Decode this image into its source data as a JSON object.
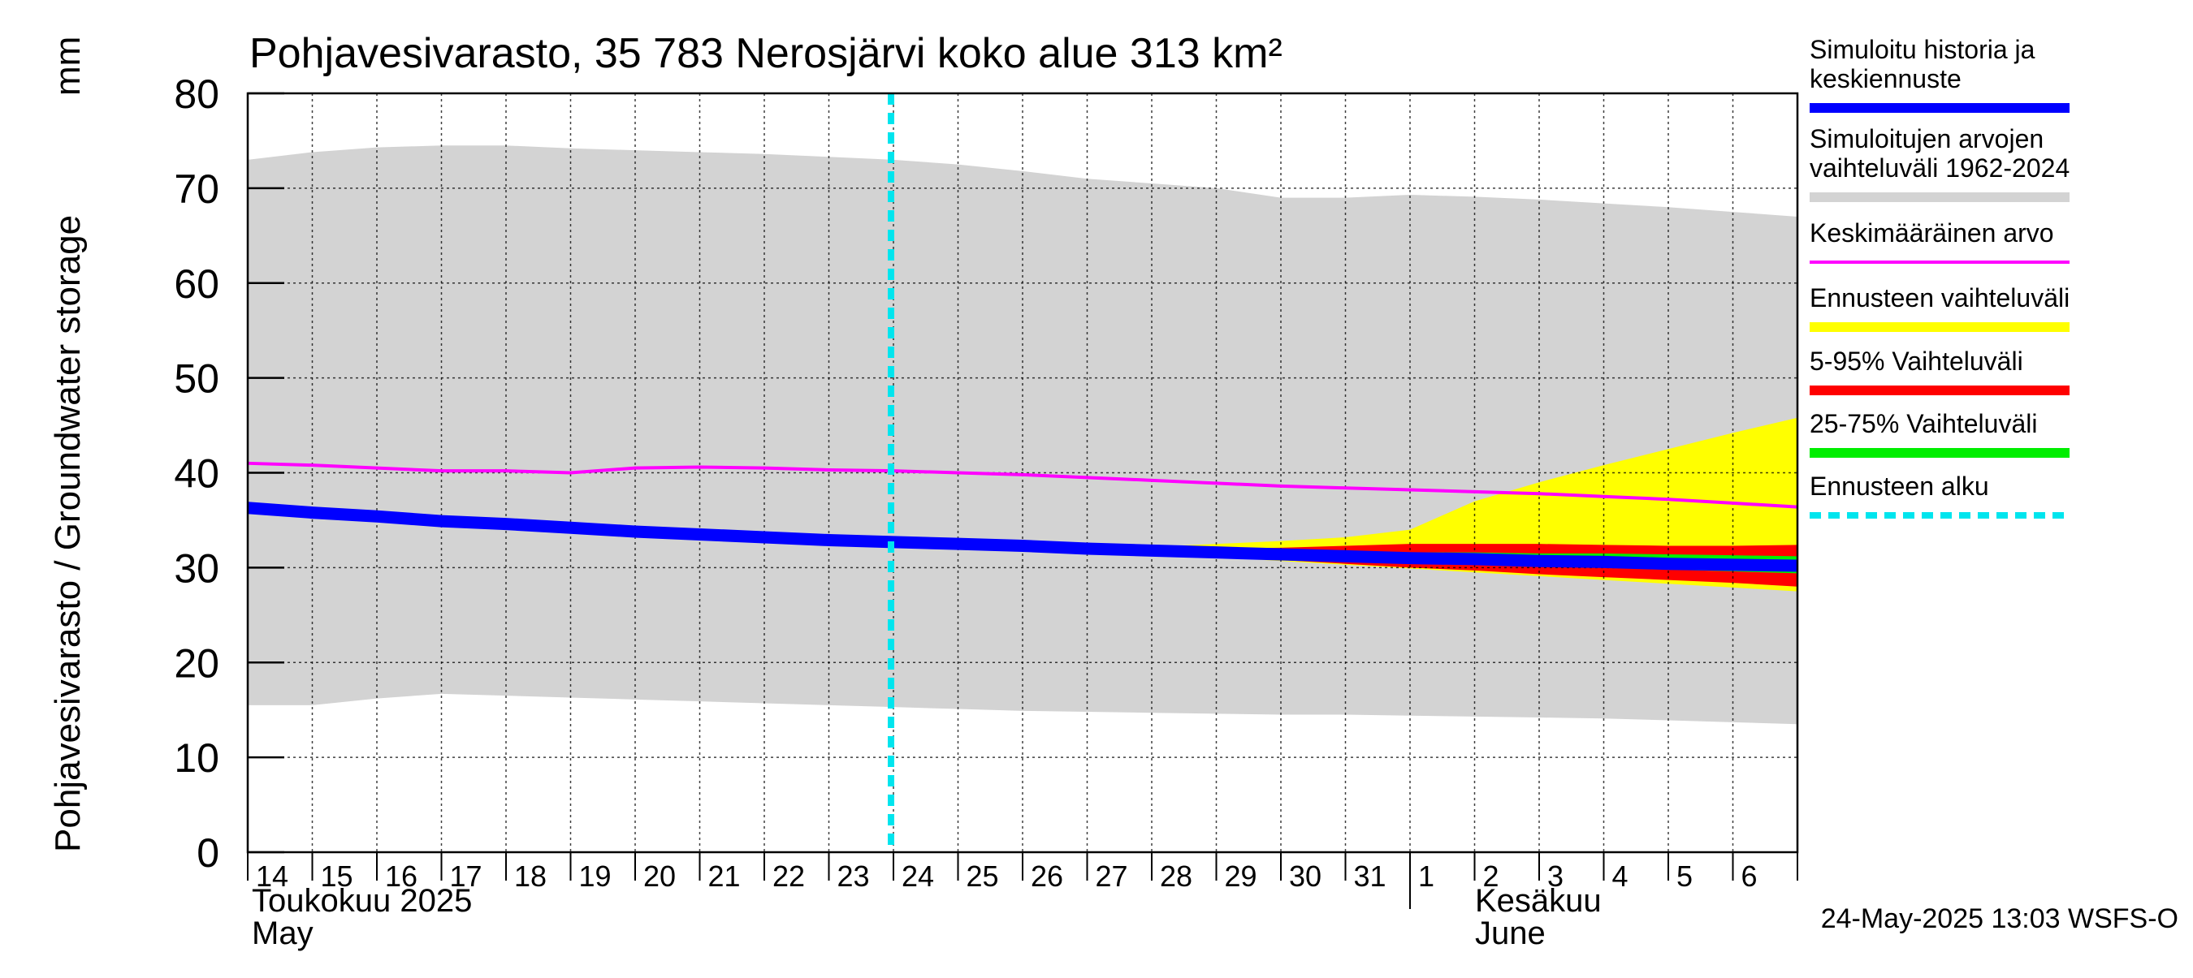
{
  "chart_data": {
    "type": "area",
    "title": "Pohjavesivarasto, 35 783 Nerosjärvi koko alue 313 km²",
    "ylabel": "Pohjavesivarasto / Groundwater storage",
    "yunit": "mm",
    "ylim": [
      0,
      80
    ],
    "yticks": [
      0,
      10,
      20,
      30,
      40,
      50,
      60,
      70,
      80
    ],
    "x_start": "2025-05-14",
    "x_end": "2025-06-06",
    "x_tick_labels": [
      "14",
      "15",
      "16",
      "17",
      "18",
      "19",
      "20",
      "21",
      "22",
      "23",
      "24",
      "25",
      "26",
      "27",
      "28",
      "29",
      "30",
      "31",
      "1",
      "2",
      "3",
      "4",
      "5",
      "6"
    ],
    "month_labels": [
      {
        "fi": "Toukokuu  2025",
        "en": "May",
        "start": "2025-05-14"
      },
      {
        "fi": "Kesäkuu",
        "en": "June",
        "start": "2025-06-01"
      }
    ],
    "grid": true,
    "legend_position": "right",
    "forecast_start": "2025-05-24",
    "dates": [
      "2025-05-14",
      "2025-05-15",
      "2025-05-16",
      "2025-05-17",
      "2025-05-18",
      "2025-05-19",
      "2025-05-20",
      "2025-05-21",
      "2025-05-22",
      "2025-05-23",
      "2025-05-24",
      "2025-05-25",
      "2025-05-26",
      "2025-05-27",
      "2025-05-28",
      "2025-05-29",
      "2025-05-30",
      "2025-05-31",
      "2025-06-01",
      "2025-06-02",
      "2025-06-03",
      "2025-06-04",
      "2025-06-05",
      "2025-06-06",
      "2025-06-07"
    ],
    "series": [
      {
        "name": "Simuloitujen arvojen vaihteluväli 1962-2024",
        "kind": "band",
        "color": "#d3d3d3",
        "lower": [
          15.5,
          15.5,
          16.2,
          16.7,
          16.5,
          16.3,
          16.1,
          15.9,
          15.7,
          15.5,
          15.3,
          15.1,
          14.9,
          14.8,
          14.7,
          14.6,
          14.5,
          14.5,
          14.4,
          14.3,
          14.2,
          14.1,
          13.9,
          13.7,
          13.5
        ],
        "upper": [
          73.0,
          73.8,
          74.3,
          74.5,
          74.5,
          74.2,
          74.0,
          73.8,
          73.6,
          73.3,
          73.0,
          72.5,
          71.8,
          71.0,
          70.5,
          70.0,
          69.0,
          69.0,
          69.3,
          69.1,
          68.8,
          68.4,
          68.0,
          67.5,
          67.0
        ]
      },
      {
        "name": "Ennusteen vaihteluväli",
        "kind": "band",
        "color": "#ffff00",
        "start_index": 10,
        "lower": [
          32.7,
          32.4,
          32.1,
          31.8,
          31.5,
          31.1,
          30.7,
          30.3,
          29.9,
          29.5,
          29.1,
          28.7,
          28.3,
          27.9,
          27.5
        ],
        "upper": [
          32.7,
          32.5,
          32.3,
          32.2,
          32.2,
          32.5,
          32.8,
          33.2,
          34.0,
          37.0,
          39.0,
          40.8,
          42.5,
          44.2,
          45.8
        ]
      },
      {
        "name": "5-95% Vaihteluväli",
        "kind": "band",
        "color": "#ff0000",
        "start_index": 10,
        "lower": [
          32.7,
          32.4,
          32.1,
          31.8,
          31.6,
          31.2,
          30.8,
          30.4,
          30.0,
          29.7,
          29.3,
          29.0,
          28.7,
          28.4,
          28.0
        ],
        "upper": [
          32.7,
          32.5,
          32.3,
          32.1,
          32.0,
          32.0,
          32.1,
          32.3,
          32.5,
          32.5,
          32.5,
          32.4,
          32.3,
          32.3,
          32.4
        ]
      },
      {
        "name": "25-75% Vaihteluväli",
        "kind": "band",
        "color": "#00ee00",
        "start_index": 10,
        "lower": [
          32.7,
          32.4,
          32.1,
          31.9,
          31.6,
          31.3,
          31.0,
          30.8,
          30.6,
          30.4,
          30.2,
          30.0,
          29.8,
          29.6,
          29.4
        ],
        "upper": [
          32.7,
          32.5,
          32.3,
          32.1,
          31.9,
          31.8,
          31.7,
          31.7,
          31.6,
          31.6,
          31.5,
          31.5,
          31.4,
          31.3,
          31.2
        ]
      },
      {
        "name": "Keskimääräinen arvo",
        "kind": "line",
        "color": "#ff00ff",
        "values": [
          41.0,
          40.8,
          40.5,
          40.2,
          40.2,
          40.0,
          40.5,
          40.6,
          40.5,
          40.3,
          40.2,
          40.0,
          39.8,
          39.5,
          39.2,
          38.9,
          38.6,
          38.4,
          38.2,
          38.0,
          37.8,
          37.5,
          37.2,
          36.8,
          36.4
        ]
      },
      {
        "name": "Simuloitu historia ja keskiennuste",
        "kind": "line",
        "color": "#0000ff",
        "values": [
          36.3,
          35.8,
          35.4,
          34.9,
          34.6,
          34.2,
          33.8,
          33.5,
          33.2,
          32.9,
          32.7,
          32.5,
          32.3,
          32.0,
          31.8,
          31.6,
          31.4,
          31.2,
          31.0,
          30.9,
          30.7,
          30.6,
          30.4,
          30.3,
          30.2
        ]
      }
    ],
    "legend": [
      {
        "label": "Simuloitu historia ja keskiennuste",
        "color": "#0000ff",
        "style": "line"
      },
      {
        "label": "Simuloitujen arvojen vaihteluväli 1962-2024",
        "color": "#d3d3d3",
        "style": "band"
      },
      {
        "label": "Keskimääräinen arvo",
        "color": "#ff00ff",
        "style": "thin"
      },
      {
        "label": "Ennusteen vaihteluväli",
        "color": "#ffff00",
        "style": "band"
      },
      {
        "label": "5-95% Vaihteluväli",
        "color": "#ff0000",
        "style": "band"
      },
      {
        "label": "25-75% Vaihteluväli",
        "color": "#00ee00",
        "style": "band"
      },
      {
        "label": "Ennusteen alku",
        "color": "#00e5ee",
        "style": "dashed"
      }
    ],
    "legend_text": [
      [
        "Simuloitu historia ja",
        "keskiennuste"
      ],
      [
        "Simuloitujen arvojen",
        "vaihteluväli 1962-2024"
      ],
      [
        "Keskimääräinen arvo"
      ],
      [
        "Ennusteen vaihteluväli"
      ],
      [
        "5-95% Vaihteluväli"
      ],
      [
        "25-75% Vaihteluväli"
      ],
      [
        "Ennusteen alku"
      ]
    ],
    "footer": "24-May-2025 13:03 WSFS-O"
  }
}
